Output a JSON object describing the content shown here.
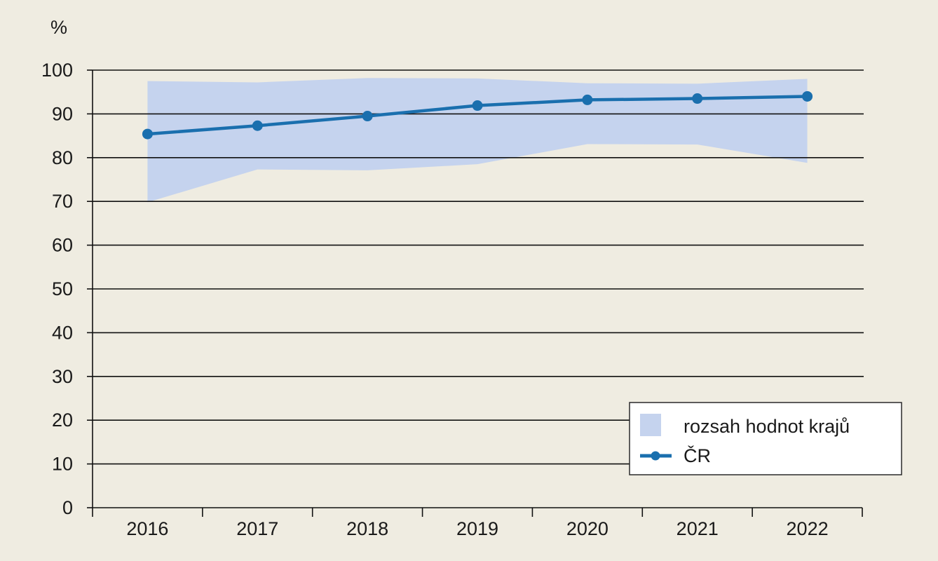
{
  "chart_data": {
    "type": "line",
    "unit_label": "%",
    "categories": [
      "2016",
      "2017",
      "2018",
      "2019",
      "2020",
      "2021",
      "2022"
    ],
    "yticks": [
      "0",
      "10",
      "20",
      "30",
      "40",
      "50",
      "60",
      "70",
      "80",
      "90",
      "100"
    ],
    "ylim": [
      0,
      100
    ],
    "grid": true,
    "legend_position": "bottom-right",
    "band": {
      "name": "rozsah hodnot krajů",
      "color": "#c5d3ee",
      "lower": [
        69.8,
        77.3,
        77.1,
        78.5,
        83.1,
        83.0,
        78.8
      ],
      "upper": [
        97.5,
        97.2,
        98.2,
        98.1,
        97.0,
        96.9,
        98.0
      ]
    },
    "series": [
      {
        "name": "ČR",
        "color": "#1a6fae",
        "values": [
          85.4,
          87.3,
          89.5,
          91.9,
          93.2,
          93.5,
          94.0
        ]
      }
    ]
  }
}
